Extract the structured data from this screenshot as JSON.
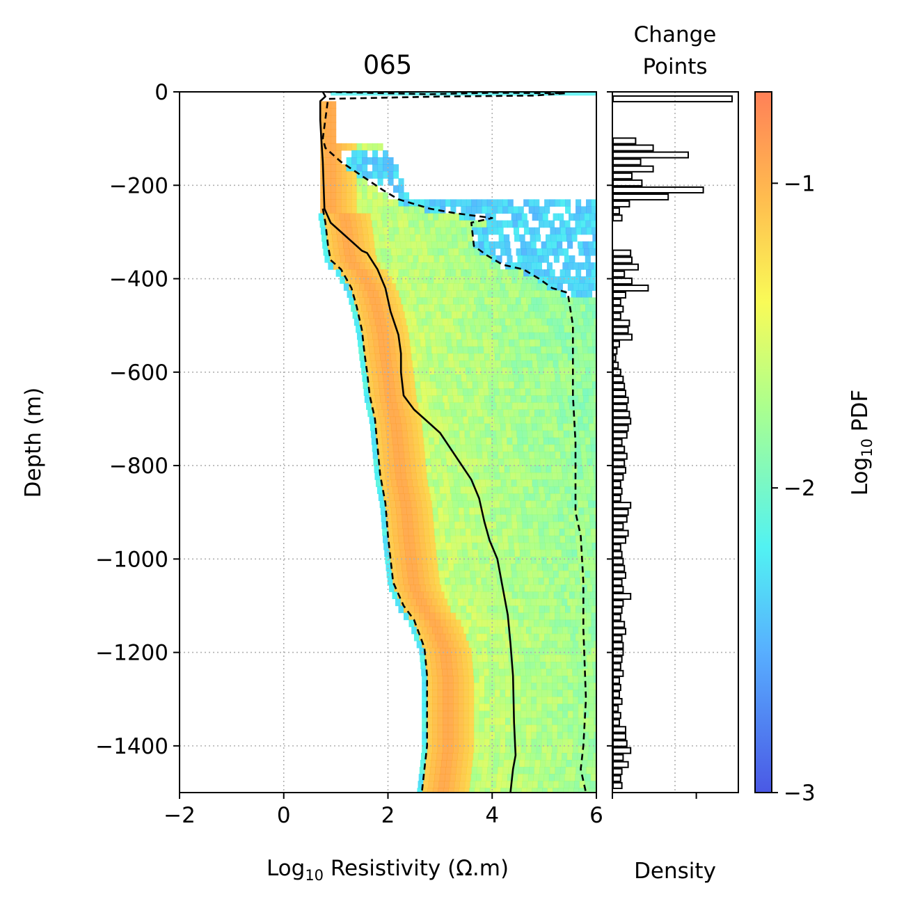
{
  "chart_data": [
    {
      "type": "heatmap",
      "title": "065",
      "xlabel_main": "Log",
      "xlabel_sub": "10",
      "xlabel_rest": " Resistivity (Ω.m)",
      "ylabel": "Depth (m)",
      "xlim": [
        -2,
        6
      ],
      "ylim": [
        -1500,
        0
      ],
      "xticks": [
        "−2",
        "0",
        "2",
        "4",
        "6"
      ],
      "xtick_values": [
        -2,
        0,
        2,
        4,
        6
      ],
      "yticks": [
        "0",
        "−200",
        "−400",
        "−600",
        "−800",
        "−1000",
        "−1200",
        "−1400"
      ],
      "ytick_values": [
        0,
        -200,
        -400,
        -600,
        -800,
        -1000,
        -1200,
        -1400
      ],
      "grid": true,
      "series": [
        {
          "style": "solid",
          "points": [
            [
              0.75,
              0
            ],
            [
              0.8,
              -10
            ],
            [
              0.7,
              -20
            ],
            [
              0.7,
              -60
            ],
            [
              0.72,
              -100
            ],
            [
              0.75,
              -150
            ],
            [
              0.78,
              -250
            ],
            [
              0.9,
              -280
            ],
            [
              1.1,
              -300
            ],
            [
              1.3,
              -320
            ],
            [
              1.5,
              -340
            ],
            [
              1.6,
              -345
            ],
            [
              1.8,
              -380
            ],
            [
              1.95,
              -420
            ],
            [
              2.05,
              -470
            ],
            [
              2.2,
              -520
            ],
            [
              2.25,
              -560
            ],
            [
              2.25,
              -600
            ],
            [
              2.3,
              -650
            ],
            [
              2.5,
              -680
            ],
            [
              2.7,
              -700
            ],
            [
              3.0,
              -730
            ],
            [
              3.3,
              -780
            ],
            [
              3.6,
              -830
            ],
            [
              3.75,
              -870
            ],
            [
              3.85,
              -920
            ],
            [
              3.95,
              -960
            ],
            [
              4.1,
              -1000
            ],
            [
              4.2,
              -1060
            ],
            [
              4.3,
              -1120
            ],
            [
              4.35,
              -1180
            ],
            [
              4.4,
              -1250
            ],
            [
              4.42,
              -1350
            ],
            [
              4.45,
              -1420
            ],
            [
              4.4,
              -1450
            ],
            [
              4.35,
              -1500
            ]
          ]
        },
        {
          "style": "dashed",
          "points": [
            [
              0.75,
              -250
            ],
            [
              0.8,
              -280
            ],
            [
              0.85,
              -330
            ],
            [
              0.9,
              -360
            ],
            [
              1.1,
              -380
            ],
            [
              1.3,
              -420
            ],
            [
              1.4,
              -460
            ],
            [
              1.5,
              -510
            ],
            [
              1.55,
              -560
            ],
            [
              1.6,
              -600
            ],
            [
              1.65,
              -650
            ],
            [
              1.75,
              -700
            ],
            [
              1.8,
              -760
            ],
            [
              1.85,
              -820
            ],
            [
              1.95,
              -880
            ],
            [
              2.0,
              -950
            ],
            [
              2.05,
              -1000
            ],
            [
              2.1,
              -1050
            ],
            [
              2.3,
              -1100
            ],
            [
              2.5,
              -1130
            ],
            [
              2.6,
              -1160
            ],
            [
              2.7,
              -1190
            ],
            [
              2.75,
              -1250
            ],
            [
              2.75,
              -1400
            ],
            [
              2.7,
              -1450
            ],
            [
              2.65,
              -1500
            ]
          ]
        },
        {
          "style": "dashed",
          "points": [
            [
              0.8,
              0
            ],
            [
              2.8,
              -5
            ],
            [
              4.0,
              -2
            ],
            [
              5.4,
              -3
            ],
            [
              4.8,
              -8
            ],
            [
              3.0,
              -10
            ],
            [
              0.85,
              -15
            ],
            [
              0.75,
              -100
            ],
            [
              0.8,
              -120
            ],
            [
              1.1,
              -150
            ],
            [
              1.5,
              -180
            ],
            [
              1.9,
              -210
            ],
            [
              2.2,
              -230
            ],
            [
              2.8,
              -250
            ],
            [
              3.3,
              -260
            ],
            [
              4.0,
              -270
            ],
            [
              3.6,
              -280
            ],
            [
              3.65,
              -330
            ],
            [
              3.9,
              -350
            ],
            [
              4.2,
              -370
            ],
            [
              4.6,
              -380
            ],
            [
              4.9,
              -400
            ],
            [
              5.15,
              -420
            ],
            [
              5.45,
              -430
            ],
            [
              5.55,
              -500
            ],
            [
              5.55,
              -650
            ],
            [
              5.6,
              -750
            ],
            [
              5.6,
              -900
            ],
            [
              5.7,
              -950
            ],
            [
              5.75,
              -1050
            ],
            [
              5.75,
              -1150
            ],
            [
              5.8,
              -1300
            ],
            [
              5.75,
              -1400
            ],
            [
              5.7,
              -1450
            ],
            [
              5.8,
              -1500
            ]
          ]
        }
      ]
    },
    {
      "type": "bar",
      "title_line1": "Change",
      "title_line2": "Points",
      "xlabel": "Density",
      "orientation": "horizontal",
      "depth_bins": [
        -15,
        -105,
        -120,
        -135,
        -150,
        -165,
        -180,
        -195,
        -210,
        -225,
        -240,
        -255,
        -270,
        -285,
        -300,
        -315,
        -330,
        -345,
        -360,
        -375,
        -390,
        -405,
        -420,
        -435,
        -450,
        -465,
        -480,
        -495,
        -510,
        -525,
        -540,
        -555,
        -570,
        -585,
        -600,
        -615,
        -630,
        -645,
        -660,
        -675,
        -690,
        -705,
        -720,
        -735,
        -750,
        -765,
        -780,
        -795,
        -810,
        -825,
        -840,
        -855,
        -870,
        -885,
        -900,
        -915,
        -930,
        -945,
        -960,
        -975,
        -990,
        -1005,
        -1020,
        -1035,
        -1050,
        -1065,
        -1080,
        -1095,
        -1110,
        -1125,
        -1140,
        -1155,
        -1170,
        -1185,
        -1200,
        -1215,
        -1230,
        -1245,
        -1260,
        -1275,
        -1290,
        -1305,
        -1320,
        -1335,
        -1350,
        -1365,
        -1380,
        -1395,
        -1410,
        -1425,
        -1440,
        -1455,
        -1470,
        -1485
      ],
      "values": [
        0.95,
        0.18,
        0.32,
        0.6,
        0.22,
        0.32,
        0.15,
        0.23,
        0.72,
        0.44,
        0.13,
        0.05,
        0.07,
        0.0,
        0.0,
        0.0,
        0.0,
        0.14,
        0.15,
        0.2,
        0.09,
        0.15,
        0.28,
        0.1,
        0.06,
        0.08,
        0.06,
        0.13,
        0.12,
        0.15,
        0.05,
        0.03,
        0.02,
        0.04,
        0.06,
        0.08,
        0.09,
        0.1,
        0.12,
        0.11,
        0.13,
        0.14,
        0.12,
        0.11,
        0.07,
        0.09,
        0.11,
        0.09,
        0.1,
        0.08,
        0.06,
        0.07,
        0.06,
        0.14,
        0.12,
        0.11,
        0.08,
        0.12,
        0.1,
        0.06,
        0.07,
        0.08,
        0.09,
        0.1,
        0.07,
        0.08,
        0.14,
        0.08,
        0.07,
        0.06,
        0.09,
        0.1,
        0.07,
        0.08,
        0.08,
        0.07,
        0.06,
        0.08,
        0.05,
        0.06,
        0.05,
        0.07,
        0.04,
        0.06,
        0.05,
        0.1,
        0.1,
        0.11,
        0.14,
        0.08,
        0.12,
        0.07,
        0.06,
        0.07
      ]
    },
    {
      "type": "colorbar",
      "label_main": "Log",
      "label_sub": "10",
      "label_rest": " PDF",
      "range": [
        -3,
        -0.7
      ],
      "ticks": [
        "−1",
        "−2",
        "−3"
      ],
      "tick_values": [
        -1,
        -2,
        -3
      ],
      "colormap": "jet"
    }
  ]
}
